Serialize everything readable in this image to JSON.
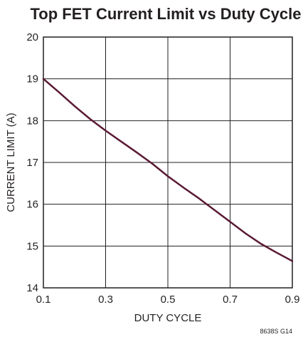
{
  "chart_data": {
    "type": "line",
    "title": "Top FET Current Limit vs Duty Cycle",
    "xlabel": "DUTY CYCLE",
    "ylabel": "CURRENT LIMIT (A)",
    "xlim": [
      0.1,
      0.9
    ],
    "ylim": [
      14,
      20
    ],
    "x_ticks": [
      0.1,
      0.3,
      0.5,
      0.7,
      0.9
    ],
    "x_tick_labels": [
      "0.1",
      "0.3",
      "0.5",
      "0.7",
      "0.9"
    ],
    "y_ticks": [
      14,
      15,
      16,
      17,
      18,
      19,
      20
    ],
    "y_tick_labels": [
      "14",
      "15",
      "16",
      "17",
      "18",
      "19",
      "20"
    ],
    "grid": true,
    "series": [
      {
        "color": "#5a1a35",
        "x": [
          0.1,
          0.15,
          0.2,
          0.25,
          0.3,
          0.35,
          0.4,
          0.45,
          0.5,
          0.55,
          0.6,
          0.65,
          0.7,
          0.75,
          0.8,
          0.85,
          0.9
        ],
        "y": [
          19.0,
          18.68,
          18.35,
          18.04,
          17.76,
          17.5,
          17.24,
          16.97,
          16.67,
          16.4,
          16.14,
          15.86,
          15.58,
          15.3,
          15.05,
          14.84,
          14.64
        ]
      }
    ],
    "figure_code": "8638S G14"
  }
}
